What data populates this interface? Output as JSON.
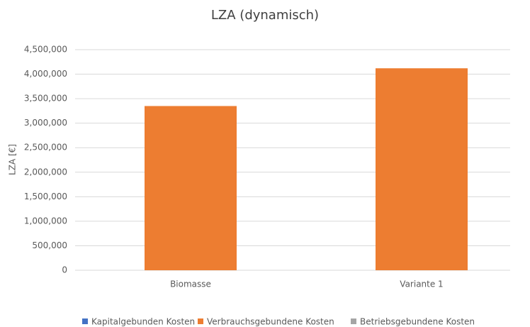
{
  "chart_data": {
    "type": "stacked_bar",
    "title": "LZA (dynamisch)",
    "y_label": "LZA [€]",
    "categories": [
      "Biomasse",
      "Variante 1"
    ],
    "series": [
      {
        "name": "Kapitalgebunden Kosten",
        "color": "#4472c4",
        "values": [
          0,
          0
        ]
      },
      {
        "name": "Verbrauchsgebundene Kosten",
        "color": "#ed7d31",
        "values": [
          3350000,
          4120000
        ]
      },
      {
        "name": "Betriebsgebundene Kosten",
        "color": "#a5a5a5",
        "values": [
          0,
          0
        ]
      }
    ],
    "ylim": [
      0,
      4500000
    ],
    "yticks": [
      0,
      {
        "value": 500000,
        "label": "500,000"
      },
      {
        "value": 1000000,
        "label": "1,000,000"
      },
      {
        "value": 1500000,
        "label": "1,500,000"
      },
      {
        "value": 2000000,
        "label": "2,000,000"
      },
      {
        "value": 2500000,
        "label": "2,500,000"
      },
      {
        "value": 3000000,
        "label": "3,000,000"
      },
      {
        "value": 3500000,
        "label": "3,500,000"
      },
      {
        "value": 4000000,
        "label": "4,000,000"
      },
      {
        "value": 4500000,
        "label": "4,500,000"
      }
    ],
    "grid": true,
    "legend": "bottom"
  }
}
